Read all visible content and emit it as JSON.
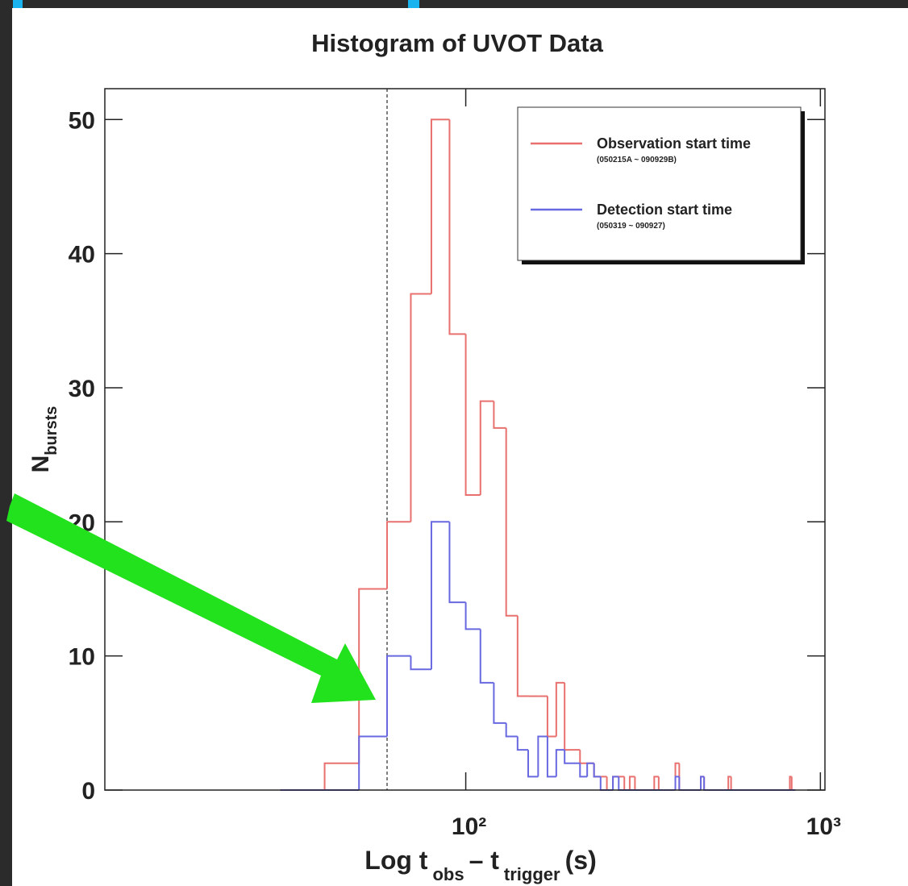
{
  "chart_data": {
    "type": "histogram",
    "title": "Histogram of UVOT Data",
    "xlabel": [
      "Log t",
      "obs",
      "–  t",
      "trigger",
      "(s)"
    ],
    "ylabel": [
      "N",
      "bursts"
    ],
    "log_x": true,
    "xlim": [
      9.6,
      1030
    ],
    "ylim": [
      0,
      52.3
    ],
    "xticks": [
      {
        "value": 100,
        "label": "10²"
      },
      {
        "value": 1000,
        "label": "10³"
      }
    ],
    "yticks": [
      0,
      10,
      20,
      30,
      40,
      50
    ],
    "vline": 60,
    "legend": "upper right",
    "bins": [
      30,
      40,
      50,
      60,
      70,
      80,
      90,
      100,
      110,
      120,
      130,
      140,
      150,
      160,
      170,
      180,
      190,
      200,
      210,
      220,
      230,
      240,
      250,
      260,
      270,
      280,
      290,
      300,
      310,
      320,
      330,
      340,
      350,
      360,
      370,
      380,
      390,
      400,
      410,
      420,
      430,
      440,
      450,
      460,
      470,
      480,
      490,
      500,
      510,
      520,
      530,
      540,
      550,
      560,
      570,
      580,
      590,
      600,
      610,
      620,
      630,
      640,
      650,
      660,
      670,
      680,
      690,
      700,
      710,
      720,
      730,
      740,
      750,
      760,
      770,
      780,
      790,
      800,
      810,
      820,
      830,
      840,
      850
    ],
    "series": [
      {
        "name": "Observation start time",
        "range": "(050215A ~ 090929B)",
        "color": "#e8706e",
        "values": [
          0,
          2,
          15,
          20,
          37,
          50,
          34,
          22,
          29,
          27,
          13,
          7,
          7,
          7,
          4,
          8,
          3,
          3,
          2,
          2,
          1,
          1,
          0,
          1,
          1,
          0,
          1,
          0,
          0,
          0,
          0,
          1,
          0,
          0,
          0,
          0,
          2,
          0,
          0,
          0,
          0,
          0,
          0,
          1,
          0,
          0,
          0,
          0,
          0,
          0,
          0,
          0,
          1,
          0,
          0,
          0,
          0,
          0,
          0,
          0,
          0,
          0,
          0,
          0,
          0,
          0,
          0,
          0,
          0,
          0,
          0,
          0,
          0,
          0,
          0,
          0,
          0,
          0,
          0,
          1,
          0,
          0
        ]
      },
      {
        "name": "Detection start time",
        "range": "(050319 ~ 090927)",
        "color": "#6868e0",
        "values": [
          0,
          0,
          4,
          10,
          9,
          20,
          14,
          12,
          8,
          5,
          4,
          3,
          1,
          4,
          1,
          3,
          2,
          2,
          1,
          2,
          1,
          0,
          0,
          1,
          0,
          0,
          0,
          0,
          0,
          0,
          0,
          0,
          0,
          0,
          0,
          0,
          1,
          0,
          0,
          0,
          0,
          0,
          0,
          1,
          0,
          0,
          0,
          0,
          0,
          0,
          0,
          0,
          0,
          0,
          0,
          0,
          0,
          0,
          0,
          0,
          0,
          0,
          0,
          0,
          0,
          0,
          0,
          0,
          0,
          0,
          0,
          0,
          0,
          0,
          0,
          0,
          0,
          0,
          0,
          0,
          0,
          0
        ]
      }
    ]
  }
}
